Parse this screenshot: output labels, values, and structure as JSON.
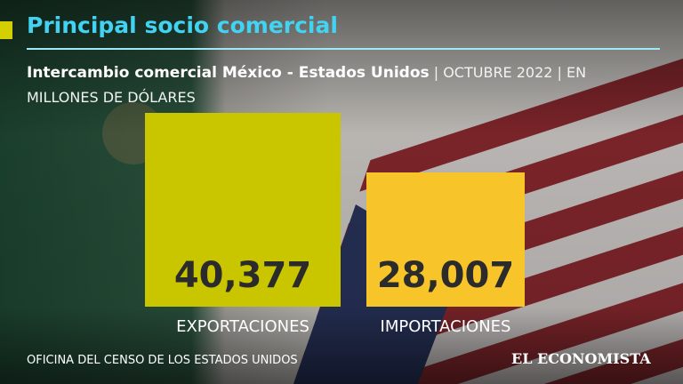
{
  "chart_data": {
    "type": "bar",
    "title": "Principal socio comercial",
    "subtitle": "Intercambio comercial México - Estados Unidos",
    "subtitle_note": "| OCTUBRE 2022 | EN MILLONES DE DÓLARES",
    "categories": [
      "EXPORTACIONES",
      "IMPORTACIONES"
    ],
    "values": [
      40377,
      28007
    ],
    "value_labels": [
      "40,377",
      "28,007"
    ],
    "colors": [
      "#c9c600",
      "#f7c52a"
    ],
    "source": "OFICINA DEL CENSO DE LOS ESTADOS UNIDOS",
    "brand": "EL ECONOMISTA"
  }
}
